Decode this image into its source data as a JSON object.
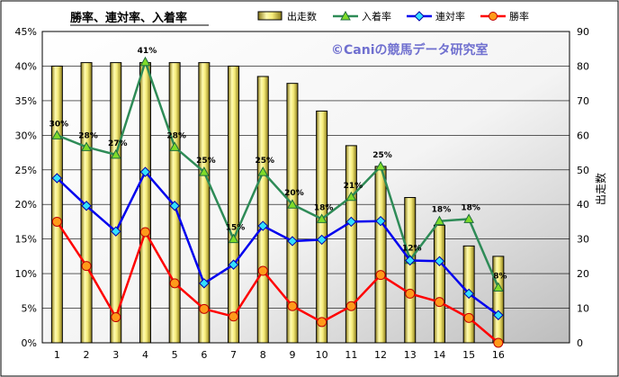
{
  "chart_data": {
    "type": "bar+line",
    "title": "勝率、連対率、入着率",
    "watermark": "©Caniの競馬データ研究室",
    "categories": [
      "1",
      "2",
      "3",
      "4",
      "5",
      "6",
      "7",
      "8",
      "9",
      "10",
      "11",
      "12",
      "13",
      "14",
      "15",
      "16"
    ],
    "bar_series": {
      "name": "出走数",
      "axis": "right",
      "values": [
        80,
        81,
        81,
        81,
        81,
        81,
        80,
        77,
        75,
        67,
        57,
        51,
        42,
        34,
        28,
        25
      ]
    },
    "line_series": [
      {
        "name": "入着率",
        "axis": "left",
        "color": "#2e8b57",
        "marker": "triangle",
        "values": [
          30,
          28.3,
          27.2,
          40.6,
          28.3,
          24.7,
          15,
          24.7,
          20,
          17.9,
          21.1,
          25.5,
          12,
          17.6,
          17.9,
          8
        ],
        "labels": [
          "30%",
          "28%",
          "27%",
          "41%",
          "28%",
          "25%",
          "15%",
          "25%",
          "20%",
          "18%",
          "21%",
          "25%",
          "12%",
          "18%",
          "18%",
          "8%"
        ]
      },
      {
        "name": "連対率",
        "axis": "left",
        "color": "#0000ee",
        "marker": "diamond",
        "values": [
          23.8,
          19.8,
          16.1,
          24.7,
          19.8,
          8.6,
          11.3,
          16.9,
          14.7,
          14.9,
          17.5,
          17.6,
          11.9,
          11.8,
          7.1,
          4
        ]
      },
      {
        "name": "勝率",
        "axis": "left",
        "color": "#ff0000",
        "marker": "circle",
        "values": [
          17.5,
          11.1,
          3.7,
          16.0,
          8.6,
          4.9,
          3.8,
          10.4,
          5.3,
          3.0,
          5.3,
          9.8,
          7.1,
          5.9,
          3.6,
          0
        ]
      }
    ],
    "y_left": {
      "min": 0,
      "max": 45,
      "step": 5,
      "tick_labels": [
        "0%",
        "5%",
        "10%",
        "15%",
        "20%",
        "25%",
        "30%",
        "35%",
        "40%",
        "45%"
      ]
    },
    "y_right": {
      "min": 0,
      "max": 90,
      "step": 10,
      "label": "出走数",
      "tick_labels": [
        "0",
        "10",
        "20",
        "30",
        "40",
        "50",
        "60",
        "70",
        "80",
        "90"
      ]
    },
    "grid": true,
    "legend_position": "top",
    "legend": [
      "出走数",
      "入着率",
      "連対率",
      "勝率"
    ]
  }
}
